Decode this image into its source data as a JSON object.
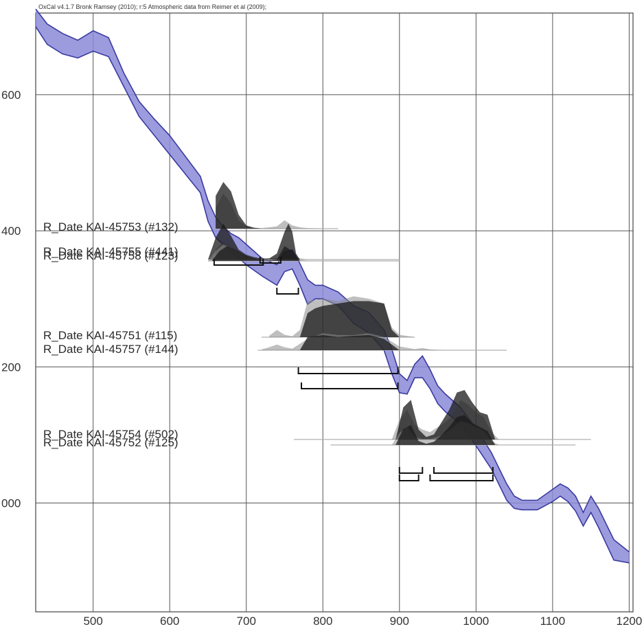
{
  "header": {
    "text": "OxCal v4.1.7 Bronk Ramsey (2010); r:5 Atmospheric data from Reimer et al (2009);"
  },
  "colors": {
    "calibration_fill": "#8a8ad8",
    "calibration_edge": "#3a3aa0",
    "posterior": "#1a1a1a",
    "prior": "#8a8a8a",
    "grid": "#555555"
  },
  "chart_data": {
    "type": "area",
    "title": "",
    "xlabel": "",
    "ylabel": "",
    "xlim": [
      425,
      1205
    ],
    "ylim": [
      1920,
      2360
    ],
    "x_ticks": [
      500,
      600,
      700,
      800,
      900,
      1000,
      1100,
      1200
    ],
    "x_tick_labels": [
      "500",
      "600",
      "700",
      "800",
      "900",
      "1000",
      "1100",
      "1200"
    ],
    "y_ticks": [
      2300,
      2200,
      2100,
      2000
    ],
    "y_tick_labels": [
      "600",
      "400",
      "200",
      "000"
    ],
    "grid": true,
    "calibration_curve": {
      "x": [
        425,
        440,
        460,
        480,
        500,
        520,
        540,
        560,
        580,
        600,
        620,
        640,
        650,
        660,
        670,
        680,
        690,
        700,
        720,
        740,
        750,
        760,
        770,
        780,
        790,
        800,
        820,
        840,
        860,
        880,
        890,
        900,
        910,
        920,
        930,
        940,
        950,
        960,
        980,
        1000,
        1020,
        1040,
        1050,
        1060,
        1080,
        1100,
        1110,
        1120,
        1130,
        1140,
        1150,
        1160,
        1180,
        1200
      ],
      "upper": [
        2363,
        2352,
        2345,
        2340,
        2347,
        2342,
        2316,
        2295,
        2282,
        2270,
        2255,
        2240,
        2222,
        2210,
        2203,
        2198,
        2195,
        2190,
        2180,
        2175,
        2184,
        2186,
        2176,
        2164,
        2160,
        2160,
        2155,
        2145,
        2140,
        2127,
        2113,
        2095,
        2090,
        2102,
        2108,
        2098,
        2086,
        2080,
        2070,
        2055,
        2037,
        2014,
        2005,
        2002,
        2002,
        2010,
        2014,
        2011,
        2005,
        1993,
        2005,
        1996,
        1973,
        1964
      ],
      "lower": [
        2350,
        2337,
        2330,
        2327,
        2332,
        2328,
        2306,
        2284,
        2270,
        2256,
        2242,
        2228,
        2207,
        2195,
        2190,
        2184,
        2180,
        2175,
        2167,
        2160,
        2170,
        2172,
        2160,
        2146,
        2150,
        2150,
        2145,
        2132,
        2125,
        2112,
        2095,
        2081,
        2080,
        2092,
        2092,
        2084,
        2073,
        2067,
        2058,
        2042,
        2025,
        2002,
        1996,
        1995,
        1995,
        2001,
        2005,
        2001,
        1994,
        1983,
        1993,
        1982,
        1958,
        1956
      ]
    },
    "series": [
      {
        "name": "R_Date KAI-45753 (#132)",
        "prior_x": [
          660,
          670,
          680,
          690,
          700,
          710,
          720,
          740,
          750,
          760,
          770,
          780,
          800
        ],
        "prior_h": [
          0.45,
          0.75,
          0.55,
          0.18,
          0.05,
          0.02,
          0.01,
          0.05,
          0.18,
          0.07,
          0.03,
          0.01,
          0.0
        ],
        "posterior_x": [
          660,
          670,
          680,
          690,
          700,
          710,
          720
        ],
        "posterior_h": [
          0.7,
          1.0,
          0.8,
          0.3,
          0.07,
          0.02,
          0.0
        ]
      },
      {
        "name": "R_Date KAI-45755 (#441)",
        "prior_x": [
          660,
          670,
          680,
          690,
          700,
          710,
          720,
          730,
          740,
          750,
          760,
          770,
          780
        ],
        "prior_h": [
          0.25,
          0.45,
          0.35,
          0.2,
          0.12,
          0.06,
          0.03,
          0.02,
          0.04,
          0.12,
          0.1,
          0.03,
          0.0
        ],
        "posterior_x": [
          650,
          660,
          670,
          680,
          690,
          700,
          710,
          720,
          730,
          740,
          750,
          755,
          760,
          765,
          770
        ],
        "posterior_h": [
          0.0,
          0.55,
          0.9,
          0.6,
          0.25,
          0.12,
          0.06,
          0.02,
          0.03,
          0.15,
          0.7,
          0.9,
          0.7,
          0.15,
          0.0
        ]
      },
      {
        "name": "R_Date KAI-45758 (#123)",
        "prior_x": [
          650,
          660,
          670,
          680,
          690,
          700,
          710,
          720,
          740,
          760,
          780
        ],
        "prior_h": [
          0.0,
          0.3,
          0.5,
          0.4,
          0.25,
          0.12,
          0.06,
          0.03,
          0.03,
          0.05,
          0.0
        ],
        "posterior_x": [
          655,
          665,
          675,
          685,
          695,
          705,
          715,
          725,
          740,
          750,
          760,
          770
        ],
        "posterior_h": [
          0.0,
          0.3,
          0.45,
          0.35,
          0.2,
          0.1,
          0.05,
          0.01,
          0.04,
          0.45,
          0.3,
          0.0
        ]
      },
      {
        "name": "R_Date KAI-45751 (#115)",
        "prior_x": [
          730,
          740,
          750,
          760,
          770,
          780,
          800,
          820,
          840,
          860,
          880,
          890,
          900,
          920
        ],
        "prior_h": [
          0.03,
          0.15,
          0.05,
          0.02,
          0.15,
          0.75,
          0.8,
          0.75,
          0.85,
          0.8,
          0.7,
          0.2,
          0.05,
          0.0
        ],
        "posterior_x": [
          770,
          780,
          790,
          800,
          820,
          840,
          860,
          880,
          890,
          900
        ],
        "posterior_h": [
          0.0,
          0.5,
          0.6,
          0.65,
          0.7,
          0.75,
          0.75,
          0.7,
          0.15,
          0.0
        ]
      },
      {
        "name": "R_Date KAI-45757 (#144)",
        "prior_x": [
          720,
          730,
          740,
          750,
          760,
          780,
          800,
          820,
          840,
          860,
          880,
          900,
          920,
          930,
          940,
          960
        ],
        "prior_h": [
          0.02,
          0.08,
          0.15,
          0.08,
          0.04,
          0.3,
          0.45,
          0.4,
          0.4,
          0.45,
          0.35,
          0.1,
          0.03,
          0.06,
          0.02,
          0.0
        ],
        "posterior_x": [
          770,
          780,
          800,
          820,
          840,
          860,
          880,
          900
        ],
        "posterior_h": [
          0.0,
          0.35,
          0.4,
          0.35,
          0.38,
          0.4,
          0.3,
          0.0
        ]
      },
      {
        "name": "R_Date KAI-45754 (#502)",
        "prior_x": [
          890,
          900,
          910,
          920,
          930,
          940,
          950,
          960,
          970,
          980,
          990,
          1000,
          1010,
          1020,
          1030
        ],
        "prior_h": [
          0.0,
          0.4,
          0.6,
          0.3,
          0.2,
          0.15,
          0.25,
          0.35,
          0.5,
          0.8,
          0.7,
          0.55,
          0.45,
          0.15,
          0.0
        ],
        "posterior_x": [
          895,
          905,
          915,
          925,
          935,
          945,
          955,
          965,
          975,
          985,
          995,
          1005,
          1015,
          1025
        ],
        "posterior_h": [
          0.0,
          0.65,
          0.8,
          0.2,
          0.05,
          0.1,
          0.35,
          0.6,
          0.95,
          1.0,
          0.75,
          0.55,
          0.5,
          0.0
        ]
      },
      {
        "name": "R_Date KAI-45752 (#125)",
        "prior_x": [
          890,
          900,
          910,
          920,
          930,
          940,
          950,
          960,
          970,
          980,
          990,
          1000,
          1010,
          1020,
          1030
        ],
        "prior_h": [
          0.0,
          0.3,
          0.45,
          0.2,
          0.15,
          0.15,
          0.2,
          0.3,
          0.45,
          0.6,
          0.55,
          0.45,
          0.35,
          0.1,
          0.0
        ],
        "posterior_x": [
          895,
          905,
          915,
          925,
          935,
          945,
          955,
          965,
          975,
          985,
          995,
          1005,
          1015,
          1025
        ],
        "posterior_h": [
          0.0,
          0.4,
          0.5,
          0.1,
          0.03,
          0.08,
          0.25,
          0.45,
          0.7,
          0.75,
          0.55,
          0.45,
          0.35,
          0.0
        ]
      }
    ],
    "ranges": [
      {
        "x_from": 658,
        "x_to": 722
      },
      {
        "x_from": 740,
        "x_to": 768
      },
      {
        "x_from": 718,
        "x_to": 745
      },
      {
        "x_from": 768,
        "x_to": 898
      },
      {
        "x_from": 772,
        "x_to": 898
      },
      {
        "x_from": 900,
        "x_to": 925
      },
      {
        "x_from": 940,
        "x_to": 1022
      },
      {
        "x_from": 900,
        "x_to": 930
      },
      {
        "x_from": 945,
        "x_to": 1022
      }
    ]
  }
}
